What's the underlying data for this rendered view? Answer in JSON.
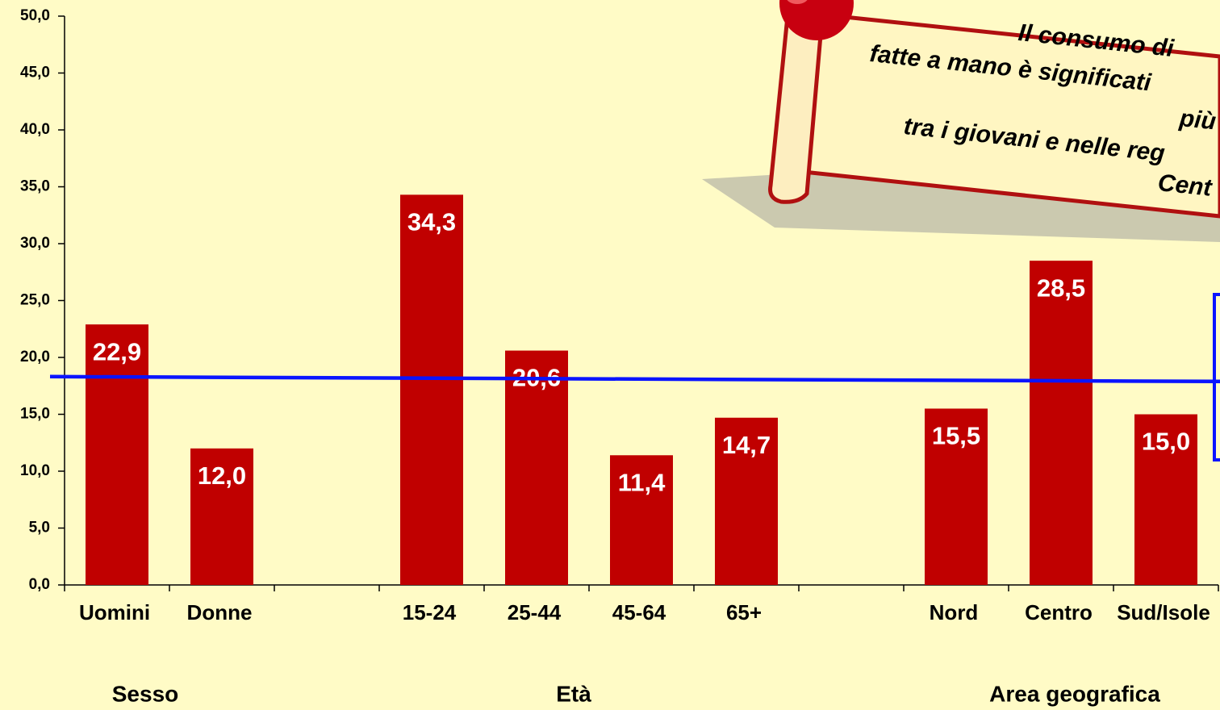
{
  "chart_data": {
    "type": "bar",
    "categories": [
      "Uomini",
      "Donne",
      null,
      "15-24",
      "25-44",
      "45-64",
      "65+",
      null,
      "Nord",
      "Centro",
      "Sud/Isole"
    ],
    "values": [
      22.9,
      12.0,
      null,
      34.3,
      20.6,
      11.4,
      14.7,
      null,
      15.5,
      28.5,
      15.0
    ],
    "value_labels": [
      "22,9",
      "12,0",
      null,
      "34,3",
      "20,6",
      "11,4",
      "14,7",
      null,
      "15,5",
      "28,5",
      "15,0"
    ],
    "color": "#c00000",
    "ylim": [
      0,
      50
    ],
    "yticks": [
      {
        "value": 0,
        "label": "0,0"
      },
      {
        "value": 5,
        "label": "5,0"
      },
      {
        "value": 10,
        "label": "10,0"
      },
      {
        "value": 15,
        "label": "15,0"
      },
      {
        "value": 20,
        "label": "20,0"
      },
      {
        "value": 25,
        "label": "25,0"
      },
      {
        "value": 30,
        "label": "30,0"
      },
      {
        "value": 35,
        "label": "35,0"
      },
      {
        "value": 40,
        "label": "40,0"
      },
      {
        "value": 45,
        "label": "45,0"
      },
      {
        "value": 50,
        "label": "50,0"
      }
    ],
    "grid": false,
    "reference_line": {
      "value": 18.1,
      "color": "#0a14ff"
    },
    "groups": [
      "Sesso",
      "Età",
      "Area geografica"
    ],
    "note": [
      "Il consumo di",
      "fatte a mano è significati",
      "più",
      "tra i giovani e nelle reg",
      "Cent"
    ]
  }
}
